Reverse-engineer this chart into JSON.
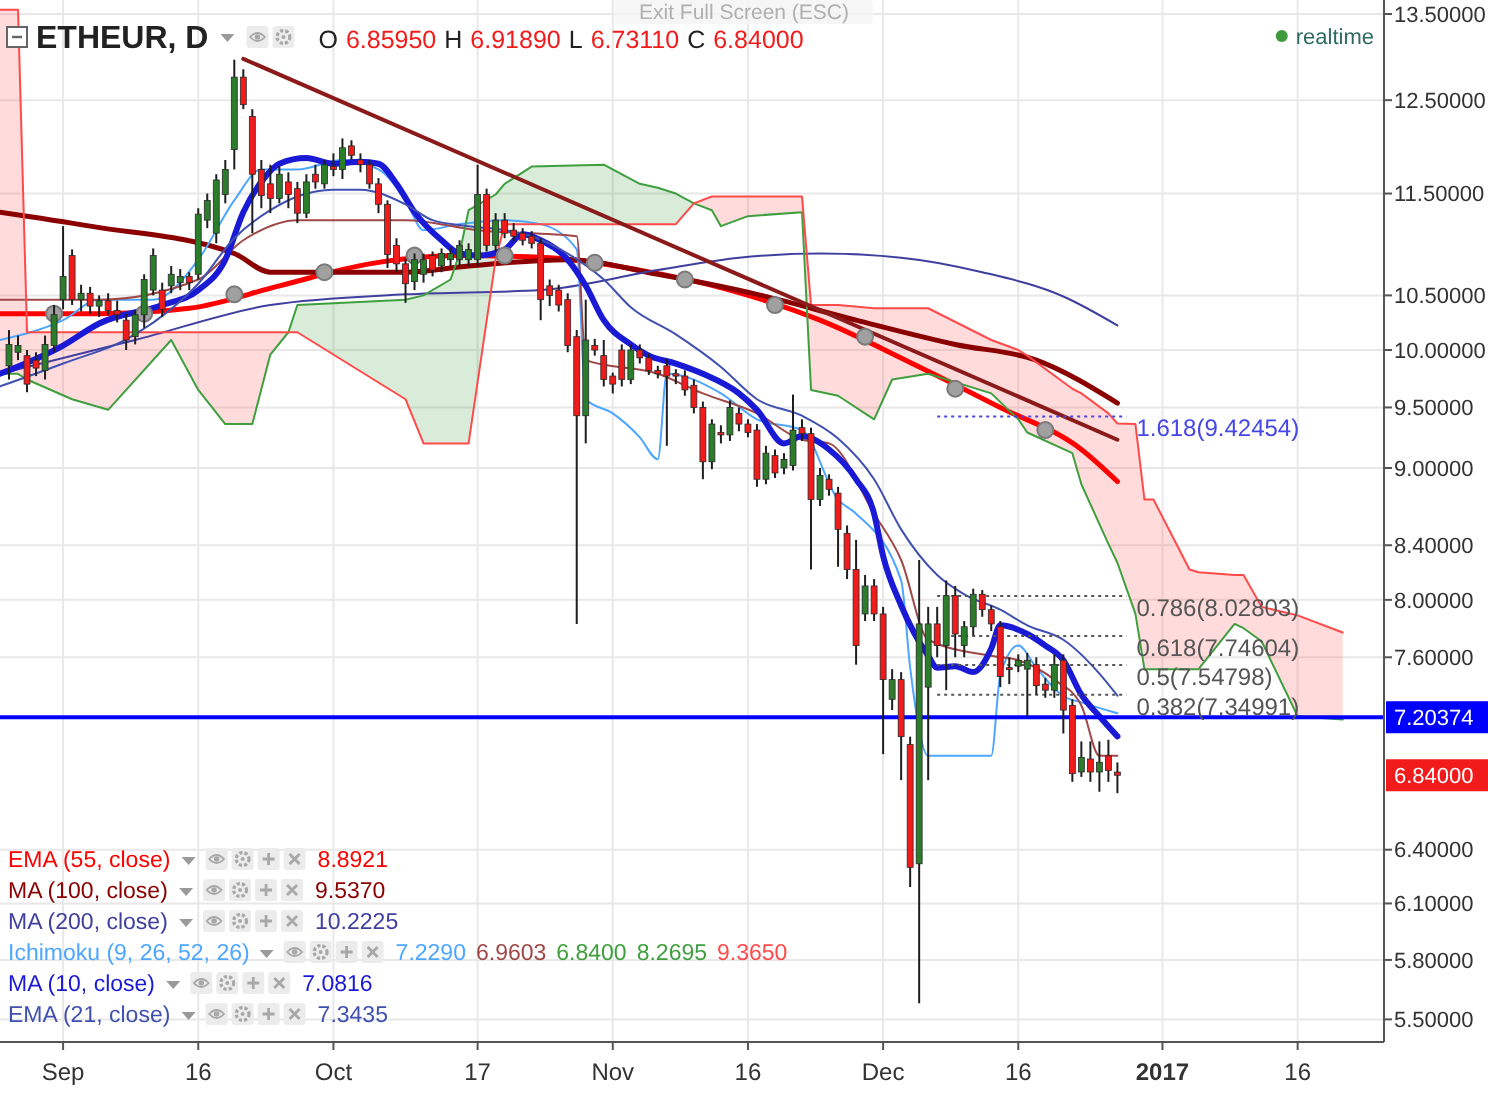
{
  "chart_data": {
    "type": "candlestick",
    "title": "ETHEUR, D",
    "subtitle": "O 6.85950 H 6.91890 L 6.73110 C 6.84000",
    "x": [
      "2016-08-26",
      "2016-08-27",
      "2016-08-28",
      "2016-08-29",
      "2016-08-30",
      "2016-08-31",
      "2016-09-01",
      "2016-09-02",
      "2016-09-03",
      "2016-09-04",
      "2016-09-05",
      "2016-09-06",
      "2016-09-07",
      "2016-09-08",
      "2016-09-09",
      "2016-09-10",
      "2016-09-11",
      "2016-09-12",
      "2016-09-13",
      "2016-09-14",
      "2016-09-15",
      "2016-09-16",
      "2016-09-17",
      "2016-09-18",
      "2016-09-19",
      "2016-09-20",
      "2016-09-21",
      "2016-09-22",
      "2016-09-23",
      "2016-09-24",
      "2016-09-25",
      "2016-09-26",
      "2016-09-27",
      "2016-09-28",
      "2016-09-29",
      "2016-09-30",
      "2016-10-01",
      "2016-10-02",
      "2016-10-03",
      "2016-10-04",
      "2016-10-05",
      "2016-10-06",
      "2016-10-07",
      "2016-10-08",
      "2016-10-09",
      "2016-10-10",
      "2016-10-11",
      "2016-10-12",
      "2016-10-13",
      "2016-10-14",
      "2016-10-15",
      "2016-10-16",
      "2016-10-17",
      "2016-10-18",
      "2016-10-19",
      "2016-10-20",
      "2016-10-21",
      "2016-10-22",
      "2016-10-23",
      "2016-10-24",
      "2016-10-25",
      "2016-10-26",
      "2016-10-27",
      "2016-10-28",
      "2016-10-29",
      "2016-10-30",
      "2016-10-31",
      "2016-11-01",
      "2016-11-02",
      "2016-11-03",
      "2016-11-04",
      "2016-11-05",
      "2016-11-06",
      "2016-11-07",
      "2016-11-08",
      "2016-11-09",
      "2016-11-10",
      "2016-11-11",
      "2016-11-12",
      "2016-11-13",
      "2016-11-14",
      "2016-11-15",
      "2016-11-16",
      "2016-11-17",
      "2016-11-18",
      "2016-11-19",
      "2016-11-20",
      "2016-11-21",
      "2016-11-22",
      "2016-11-23",
      "2016-11-24",
      "2016-11-25",
      "2016-11-26",
      "2016-11-27",
      "2016-11-28",
      "2016-11-29",
      "2016-11-30",
      "2016-12-01",
      "2016-12-02",
      "2016-12-03",
      "2016-12-04",
      "2016-12-05",
      "2016-12-06",
      "2016-12-07",
      "2016-12-08",
      "2016-12-09",
      "2016-12-10",
      "2016-12-11",
      "2016-12-12",
      "2016-12-13",
      "2016-12-14",
      "2016-12-15",
      "2016-12-16",
      "2016-12-17",
      "2016-12-18",
      "2016-12-19",
      "2016-12-20",
      "2016-12-21",
      "2016-12-22",
      "2016-12-23",
      "2016-12-24",
      "2016-12-25",
      "2016-12-26",
      "2016-12-27"
    ],
    "ohlc": [
      [
        9.86,
        10.18,
        9.74,
        10.05
      ],
      [
        9.98,
        10.13,
        9.91,
        10.04
      ],
      [
        9.95,
        10.0,
        9.63,
        9.7
      ],
      [
        9.91,
        9.98,
        9.77,
        9.84
      ],
      [
        9.82,
        10.13,
        9.74,
        10.05
      ],
      [
        10.04,
        10.41,
        9.98,
        10.32
      ],
      [
        10.46,
        11.17,
        10.37,
        10.68
      ],
      [
        10.88,
        10.94,
        10.41,
        10.46
      ],
      [
        10.46,
        10.6,
        10.35,
        10.52
      ],
      [
        10.52,
        10.58,
        10.33,
        10.4
      ],
      [
        10.4,
        10.5,
        10.3,
        10.45
      ],
      [
        10.45,
        10.52,
        10.32,
        10.36
      ],
      [
        10.36,
        10.45,
        10.25,
        10.32
      ],
      [
        10.27,
        10.33,
        10.0,
        10.09
      ],
      [
        10.12,
        10.36,
        10.05,
        10.32
      ],
      [
        10.32,
        10.7,
        10.2,
        10.65
      ],
      [
        10.55,
        10.95,
        10.5,
        10.88
      ],
      [
        10.55,
        10.62,
        10.3,
        10.37
      ],
      [
        10.59,
        10.78,
        10.52,
        10.7
      ],
      [
        10.62,
        10.75,
        10.55,
        10.68
      ],
      [
        10.68,
        10.72,
        10.55,
        10.62
      ],
      [
        10.7,
        11.35,
        10.65,
        11.29
      ],
      [
        11.23,
        11.5,
        11.15,
        11.43
      ],
      [
        11.1,
        11.7,
        11.0,
        11.64
      ],
      [
        11.49,
        11.85,
        11.4,
        11.75
      ],
      [
        11.96,
        12.96,
        11.75,
        12.76
      ],
      [
        12.76,
        12.85,
        12.4,
        12.45
      ],
      [
        12.32,
        12.4,
        11.1,
        11.7
      ],
      [
        11.75,
        11.85,
        11.35,
        11.48
      ],
      [
        11.6,
        11.8,
        11.3,
        11.45
      ],
      [
        11.45,
        11.78,
        11.4,
        11.7
      ],
      [
        11.62,
        11.72,
        11.35,
        11.49
      ],
      [
        11.55,
        11.62,
        11.2,
        11.3
      ],
      [
        11.3,
        11.7,
        11.25,
        11.62
      ],
      [
        11.7,
        11.8,
        11.55,
        11.62
      ],
      [
        11.6,
        11.85,
        11.55,
        11.8
      ],
      [
        11.78,
        11.92,
        11.68,
        11.75
      ],
      [
        11.75,
        12.08,
        11.65,
        11.98
      ],
      [
        12.0,
        12.06,
        11.85,
        11.9
      ],
      [
        11.85,
        11.92,
        11.72,
        11.8
      ],
      [
        11.8,
        11.85,
        11.55,
        11.6
      ],
      [
        11.6,
        11.66,
        11.3,
        11.39
      ],
      [
        11.39,
        11.43,
        10.76,
        10.89
      ],
      [
        10.98,
        11.05,
        10.72,
        10.8
      ],
      [
        10.8,
        10.85,
        10.43,
        10.61
      ],
      [
        10.63,
        10.9,
        10.55,
        10.84
      ],
      [
        10.7,
        10.9,
        10.62,
        10.84
      ],
      [
        10.88,
        10.92,
        10.68,
        10.74
      ],
      [
        10.78,
        10.95,
        10.72,
        10.9
      ],
      [
        10.84,
        10.96,
        10.78,
        10.9
      ],
      [
        10.84,
        11.03,
        10.78,
        10.98
      ],
      [
        10.84,
        11.0,
        10.78,
        10.94
      ],
      [
        10.84,
        11.8,
        10.78,
        11.49
      ],
      [
        11.49,
        11.55,
        10.92,
        10.98
      ],
      [
        10.98,
        11.3,
        10.92,
        11.23
      ],
      [
        11.23,
        11.3,
        11.05,
        11.1
      ],
      [
        11.13,
        11.2,
        11.02,
        11.07
      ],
      [
        11.1,
        11.15,
        10.98,
        11.03
      ],
      [
        11.07,
        11.12,
        10.95,
        11.0
      ],
      [
        11.0,
        11.05,
        10.27,
        10.46
      ],
      [
        10.59,
        10.65,
        10.4,
        10.5
      ],
      [
        10.55,
        10.6,
        10.35,
        10.41
      ],
      [
        10.46,
        10.52,
        9.98,
        10.04
      ],
      [
        10.12,
        10.18,
        7.83,
        9.43
      ],
      [
        9.43,
        10.46,
        9.2,
        10.09
      ],
      [
        10.04,
        10.1,
        9.95,
        10.0
      ],
      [
        9.95,
        10.09,
        9.68,
        9.74
      ],
      [
        9.77,
        9.8,
        9.62,
        9.7
      ],
      [
        10.0,
        10.05,
        9.68,
        9.74
      ],
      [
        9.74,
        10.05,
        9.7,
        10.0
      ],
      [
        10.0,
        10.05,
        9.88,
        9.93
      ],
      [
        9.93,
        9.97,
        9.78,
        9.82
      ],
      [
        9.82,
        9.86,
        9.75,
        9.79
      ],
      [
        9.86,
        9.92,
        9.18,
        9.77
      ],
      [
        9.79,
        9.83,
        9.7,
        9.77
      ],
      [
        9.77,
        9.82,
        9.6,
        9.65
      ],
      [
        9.69,
        9.74,
        9.45,
        9.5
      ],
      [
        9.5,
        9.55,
        8.91,
        9.05
      ],
      [
        9.05,
        9.4,
        8.99,
        9.36
      ],
      [
        9.29,
        9.35,
        9.2,
        9.27
      ],
      [
        9.27,
        9.56,
        9.22,
        9.5
      ],
      [
        9.45,
        9.5,
        9.3,
        9.36
      ],
      [
        9.36,
        9.4,
        9.25,
        9.29
      ],
      [
        9.31,
        9.36,
        8.85,
        8.91
      ],
      [
        8.91,
        9.18,
        8.87,
        9.12
      ],
      [
        9.1,
        9.15,
        8.92,
        8.96
      ],
      [
        9.0,
        9.12,
        8.95,
        9.07
      ],
      [
        9.02,
        9.61,
        8.98,
        9.31
      ],
      [
        9.33,
        9.4,
        9.22,
        9.28
      ],
      [
        9.28,
        9.33,
        8.22,
        8.75
      ],
      [
        8.75,
        9.0,
        8.7,
        8.94
      ],
      [
        8.91,
        8.95,
        8.78,
        8.83
      ],
      [
        8.8,
        8.85,
        8.24,
        8.52
      ],
      [
        8.49,
        8.55,
        8.15,
        8.22
      ],
      [
        8.22,
        8.44,
        7.55,
        7.68
      ],
      [
        7.9,
        8.18,
        7.85,
        8.1
      ],
      [
        8.1,
        8.15,
        7.85,
        7.9
      ],
      [
        7.9,
        7.95,
        6.97,
        7.45
      ],
      [
        7.32,
        7.52,
        7.25,
        7.45
      ],
      [
        7.45,
        7.5,
        6.81,
        7.08
      ],
      [
        7.03,
        7.08,
        6.19,
        6.3
      ],
      [
        6.32,
        8.29,
        5.58,
        7.83
      ],
      [
        7.4,
        7.95,
        6.81,
        7.83
      ],
      [
        7.83,
        7.95,
        7.6,
        7.68
      ],
      [
        7.68,
        8.14,
        7.38,
        8.03
      ],
      [
        8.03,
        8.1,
        7.6,
        7.76
      ],
      [
        7.68,
        7.85,
        7.6,
        7.81
      ],
      [
        7.81,
        8.08,
        7.75,
        8.04
      ],
      [
        8.04,
        8.07,
        7.88,
        7.93
      ],
      [
        7.93,
        7.96,
        7.78,
        7.83
      ],
      [
        7.81,
        7.85,
        7.4,
        7.47
      ],
      [
        7.53,
        7.6,
        7.42,
        7.52
      ],
      [
        7.54,
        7.62,
        7.5,
        7.58
      ],
      [
        7.52,
        7.63,
        7.21,
        7.58
      ],
      [
        7.55,
        7.6,
        7.35,
        7.41
      ],
      [
        7.42,
        7.46,
        7.33,
        7.38
      ],
      [
        7.38,
        7.62,
        7.33,
        7.55
      ],
      [
        7.58,
        7.62,
        7.1,
        7.25
      ],
      [
        7.28,
        7.32,
        6.8,
        6.85
      ],
      [
        6.86,
        7.05,
        6.83,
        6.95
      ],
      [
        6.94,
        7.05,
        6.8,
        6.86
      ],
      [
        6.86,
        7.05,
        6.74,
        6.92
      ],
      [
        6.96,
        7.06,
        6.8,
        6.87
      ],
      [
        6.8595,
        6.9189,
        6.7311,
        6.84
      ]
    ],
    "colors": [
      "#2b7d2b",
      "#2b7d2b",
      "#f21b1b",
      "#f21b1b",
      "#2b7d2b",
      "#2b7d2b",
      "#2b7d2b",
      "#f21b1b",
      "#2b7d2b",
      "#f21b1b",
      "#2b7d2b",
      "#f21b1b",
      "#f21b1b",
      "#f21b1b",
      "#2b7d2b",
      "#2b7d2b",
      "#2b7d2b",
      "#f21b1b",
      "#2b7d2b",
      "#2b7d2b",
      "#f21b1b",
      "#2b7d2b",
      "#2b7d2b",
      "#2b7d2b",
      "#2b7d2b",
      "#2b7d2b",
      "#f21b1b",
      "#f21b1b",
      "#f21b1b",
      "#f21b1b",
      "#2b7d2b",
      "#f21b1b",
      "#f21b1b",
      "#2b7d2b",
      "#f21b1b",
      "#2b7d2b",
      "#f21b1b",
      "#2b7d2b",
      "#f21b1b",
      "#f21b1b",
      "#f21b1b",
      "#f21b1b",
      "#f21b1b",
      "#f21b1b",
      "#f21b1b",
      "#2b7d2b",
      "#2b7d2b",
      "#f21b1b",
      "#2b7d2b",
      "#2b7d2b",
      "#2b7d2b",
      "#2b7d2b",
      "#2b7d2b",
      "#f21b1b",
      "#2b7d2b",
      "#f21b1b",
      "#f21b1b",
      "#f21b1b",
      "#f21b1b",
      "#f21b1b",
      "#f21b1b",
      "#f21b1b",
      "#f21b1b",
      "#f21b1b",
      "#2b7d2b",
      "#f21b1b",
      "#f21b1b",
      "#f21b1b",
      "#f21b1b",
      "#2b7d2b",
      "#f21b1b",
      "#f21b1b",
      "#f21b1b",
      "#f21b1b",
      "#f21b1b",
      "#f21b1b",
      "#f21b1b",
      "#f21b1b",
      "#2b7d2b",
      "#f21b1b",
      "#2b7d2b",
      "#f21b1b",
      "#f21b1b",
      "#f21b1b",
      "#2b7d2b",
      "#f21b1b",
      "#2b7d2b",
      "#2b7d2b",
      "#f21b1b",
      "#f21b1b",
      "#2b7d2b",
      "#f21b1b",
      "#f21b1b",
      "#f21b1b",
      "#f21b1b",
      "#2b7d2b",
      "#f21b1b",
      "#f21b1b",
      "#2b7d2b",
      "#f21b1b",
      "#f21b1b",
      "#2b7d2b",
      "#2b7d2b",
      "#f21b1b",
      "#2b7d2b",
      "#f21b1b",
      "#2b7d2b",
      "#2b7d2b",
      "#f21b1b",
      "#f21b1b",
      "#f21b1b",
      "#f21b1b",
      "#2b7d2b",
      "#2b7d2b",
      "#f21b1b",
      "#f21b1b",
      "#2b7d2b",
      "#f21b1b",
      "#f21b1b",
      "#2b7d2b",
      "#f21b1b",
      "#2b7d2b",
      "#f21b1b",
      "#f21b1b"
    ],
    "series": [
      {
        "type": "line",
        "name": "EMA (55, close)",
        "color": "#ff0000",
        "x": [
          "2016-08-25",
          "2016-09-05",
          "2016-09-15",
          "2016-09-25",
          "2016-10-05",
          "2016-10-15",
          "2016-10-25",
          "2016-11-04",
          "2016-11-14",
          "2016-11-24",
          "2016-12-04",
          "2016-12-14",
          "2016-12-23",
          "2016-12-27"
        ],
        "values": [
          10.33,
          10.33,
          10.38,
          10.59,
          10.8,
          10.88,
          10.86,
          10.74,
          10.55,
          10.27,
          9.89,
          9.5,
          9.15,
          8.8921
        ]
      },
      {
        "type": "line",
        "name": "MA (100, close)",
        "color": "#8b0000",
        "x": [
          "2016-08-25",
          "2016-09-04",
          "2016-09-20",
          "2016-09-24",
          "2016-09-30",
          "2016-10-09",
          "2016-10-16",
          "2016-10-27",
          "2016-11-06",
          "2016-11-17",
          "2016-11-28",
          "2016-12-09",
          "2016-12-18",
          "2016-12-27"
        ],
        "values": [
          11.31,
          11.17,
          10.9,
          10.72,
          10.72,
          10.72,
          10.78,
          10.84,
          10.7,
          10.51,
          10.27,
          10.05,
          9.91,
          9.537
        ]
      },
      {
        "type": "line",
        "name": "MA (200, close)",
        "color": "#3f3f9f",
        "x": [
          "2016-08-25",
          "2016-09-09",
          "2016-09-24",
          "2016-10-09",
          "2016-10-24",
          "2016-11-06",
          "2016-11-15",
          "2016-11-24",
          "2016-12-03",
          "2016-12-12",
          "2016-12-21",
          "2016-12-27"
        ],
        "values": [
          9.79,
          10.09,
          10.41,
          10.51,
          10.55,
          10.74,
          10.86,
          10.9,
          10.86,
          10.72,
          10.49,
          10.2225
        ]
      },
      {
        "type": "line",
        "name": "Ichimoku (9, 26, 52, 26)",
        "color": "#4da6ff",
        "x": [
          "2016-08-25",
          "2016-09-01",
          "2016-09-05",
          "2016-09-11",
          "2016-09-16",
          "2016-09-20",
          "2016-09-23",
          "2016-09-27",
          "2016-10-02",
          "2016-10-06",
          "2016-10-09",
          "2016-10-11",
          "2016-10-15",
          "2016-10-20",
          "2016-10-24",
          "2016-10-28",
          "2016-10-29",
          "2016-11-01",
          "2016-11-04",
          "2016-11-06",
          "2016-11-07",
          "2016-11-13",
          "2016-11-17",
          "2016-11-22",
          "2016-11-26",
          "2016-11-28",
          "2016-12-03",
          "2016-12-04",
          "2016-12-06",
          "2016-12-13",
          "2016-12-14",
          "2016-12-16",
          "2016-12-18",
          "2016-12-21",
          "2016-12-23",
          "2016-12-27"
        ],
        "values": [
          10.09,
          10.27,
          10.46,
          10.46,
          10.84,
          11.43,
          11.75,
          11.75,
          11.85,
          11.75,
          11.43,
          11.13,
          11.19,
          11.23,
          11.19,
          10.94,
          9.57,
          9.45,
          9.25,
          9.07,
          9.79,
          9.62,
          9.4,
          9.31,
          8.75,
          8.64,
          8.14,
          7.53,
          6.96,
          6.96,
          7.48,
          7.68,
          7.53,
          7.34,
          7.3,
          7.229
        ]
      },
      {
        "type": "line",
        "color": "#a04848",
        "x": [
          "2016-08-25",
          "2016-09-05",
          "2016-09-16",
          "2016-09-21",
          "2016-09-27",
          "2016-10-09",
          "2016-10-17",
          "2016-10-28",
          "2016-10-29",
          "2016-11-06",
          "2016-11-11",
          "2016-11-17",
          "2016-11-22",
          "2016-11-25",
          "2016-11-30",
          "2016-12-03",
          "2016-12-06",
          "2016-12-13",
          "2016-12-16",
          "2016-12-20",
          "2016-12-23",
          "2016-12-25",
          "2016-12-27"
        ],
        "values": [
          10.46,
          10.46,
          10.65,
          11.03,
          11.23,
          11.23,
          11.13,
          11.07,
          9.91,
          9.79,
          9.62,
          9.45,
          9.23,
          9.2,
          8.64,
          8.29,
          7.72,
          7.61,
          7.58,
          7.45,
          7.28,
          6.96,
          6.9603
        ]
      },
      {
        "type": "line",
        "color": "#3f9f3f",
        "x": [
          "2016-08-25",
          "2016-08-27",
          "2016-08-28",
          "2016-09-02",
          "2016-09-06",
          "2016-09-13",
          "2016-09-16",
          "2016-09-19",
          "2016-09-22",
          "2016-09-24",
          "2016-09-26",
          "2016-09-27",
          "2016-10-09",
          "2016-10-11",
          "2016-10-14",
          "2016-10-15",
          "2016-10-16",
          "2016-10-19",
          "2016-10-20",
          "2016-10-23",
          "2016-10-31",
          "2016-11-04",
          "2016-11-06",
          "2016-11-08",
          "2016-11-10",
          "2016-11-12",
          "2016-11-13",
          "2016-11-16",
          "2016-11-22",
          "2016-11-23",
          "2016-11-26",
          "2016-11-30",
          "2016-12-02",
          "2016-12-06",
          "2016-12-13",
          "2016-12-16",
          "2016-12-17",
          "2016-12-22",
          "2016-12-23",
          "2016-12-26",
          "2016-12-27",
          "2016-12-29",
          "2016-12-30",
          "2016-12-31",
          "2017-01-04",
          "2017-01-05",
          "2017-01-09",
          "2017-01-10",
          "2017-01-12",
          "2017-01-16",
          "2017-01-21"
        ],
        "values": [
          9.79,
          9.79,
          9.74,
          9.57,
          9.48,
          10.09,
          9.65,
          9.36,
          9.36,
          9.96,
          10.16,
          10.41,
          10.46,
          10.5,
          10.65,
          10.9,
          11.33,
          11.49,
          11.6,
          11.78,
          11.8,
          11.6,
          11.56,
          11.5,
          11.4,
          11.33,
          11.17,
          11.27,
          11.31,
          9.65,
          9.6,
          9.4,
          9.74,
          9.79,
          9.62,
          9.4,
          9.29,
          9.12,
          8.87,
          8.41,
          8.2695,
          7.9,
          7.52,
          7.52,
          7.52,
          7.52,
          7.83,
          7.8,
          7.71,
          7.21,
          7.19
        ],
        "lower": [
          null,
          null,
          null,
          null,
          null,
          null,
          null,
          null,
          null,
          null,
          10.16,
          10.16,
          9.57,
          9.2,
          9.2,
          9.2,
          9.2,
          10.84,
          11.19,
          11.19,
          11.19,
          11.19,
          11.19,
          11.19,
          11.4,
          null,
          null,
          null,
          null,
          null,
          null,
          null,
          null,
          null,
          null,
          null,
          null,
          null,
          null,
          null,
          null,
          null,
          null,
          null,
          null,
          null,
          null,
          null,
          null,
          null,
          null
        ],
        "upper": [
          null,
          null,
          null,
          null,
          null,
          null,
          null,
          null,
          null,
          null,
          10.16,
          10.41,
          10.46,
          10.5,
          10.65,
          10.9,
          11.33,
          11.49,
          11.6,
          11.78,
          11.8,
          11.6,
          11.56,
          11.5,
          11.4,
          null,
          null,
          null,
          null,
          null,
          null,
          null,
          null,
          null,
          null,
          null,
          null,
          null,
          null,
          null,
          null,
          null,
          null,
          null,
          null,
          null,
          null,
          null,
          null,
          null,
          null
        ]
      },
      {
        "type": "line",
        "color": "#ff4a4a",
        "x": [
          "2016-08-25",
          "2016-08-27",
          "2016-08-28",
          "2016-09-02",
          "2016-09-06",
          "2016-09-13",
          "2016-09-16",
          "2016-09-19",
          "2016-09-22",
          "2016-09-24",
          "2016-09-26",
          "2016-09-27",
          "2016-10-09",
          "2016-10-11",
          "2016-10-14",
          "2016-10-15",
          "2016-10-16",
          "2016-10-19",
          "2016-10-20",
          "2016-10-23",
          "2016-10-31",
          "2016-11-04",
          "2016-11-06",
          "2016-11-08",
          "2016-11-10",
          "2016-11-12",
          "2016-11-13",
          "2016-11-16",
          "2016-11-22",
          "2016-11-23",
          "2016-11-26",
          "2016-11-30",
          "2016-12-02",
          "2016-12-06",
          "2016-12-13",
          "2016-12-16",
          "2016-12-17",
          "2016-12-22",
          "2016-12-23",
          "2016-12-26",
          "2016-12-27",
          "2016-12-29",
          "2016-12-30",
          "2016-12-31",
          "2017-01-04",
          "2017-01-05",
          "2017-01-09",
          "2017-01-10",
          "2017-01-12",
          "2017-01-16",
          "2017-01-21"
        ],
        "values": [
          13.55,
          13.55,
          10.16,
          10.16,
          10.16,
          10.16,
          10.16,
          10.16,
          10.16,
          10.16,
          10.16,
          10.16,
          9.57,
          9.2,
          9.2,
          9.2,
          9.2,
          10.84,
          11.19,
          11.19,
          11.19,
          11.19,
          11.19,
          11.19,
          11.4,
          11.47,
          11.47,
          11.47,
          11.47,
          10.41,
          10.41,
          10.38,
          10.38,
          10.38,
          10.09,
          10.0,
          9.95,
          9.66,
          9.62,
          9.45,
          9.365,
          9.36,
          8.75,
          8.75,
          8.22,
          8.2,
          8.18,
          8.18,
          7.95,
          7.89,
          7.77
        ],
        "lower": [
          9.79,
          9.79,
          9.74,
          9.57,
          9.48,
          10.09,
          9.65,
          9.36,
          9.36,
          9.96,
          10.16,
          null,
          null,
          null,
          null,
          null,
          null,
          null,
          null,
          null,
          null,
          null,
          null,
          null,
          11.4,
          11.33,
          11.17,
          11.27,
          11.31,
          9.65,
          9.6,
          9.4,
          9.74,
          9.79,
          9.62,
          9.4,
          9.29,
          9.12,
          8.87,
          8.41,
          8.2695,
          7.9,
          7.52,
          7.52,
          7.52,
          7.52,
          7.83,
          7.8,
          7.71,
          7.21,
          7.19
        ],
        "upper": [
          13.55,
          13.55,
          10.16,
          10.16,
          10.16,
          10.16,
          10.16,
          10.16,
          10.16,
          10.16,
          10.16,
          null,
          null,
          null,
          null,
          null,
          null,
          null,
          null,
          null,
          null,
          null,
          null,
          null,
          11.4,
          11.47,
          11.47,
          11.47,
          11.47,
          10.41,
          10.41,
          10.38,
          10.38,
          10.38,
          10.09,
          10.0,
          9.95,
          9.66,
          9.62,
          9.45,
          9.365,
          9.36,
          8.75,
          8.75,
          8.22,
          8.2,
          8.18,
          8.18,
          7.95,
          7.89,
          7.77
        ]
      },
      {
        "type": "line",
        "name": "MA (10, close)",
        "color": "#1a1ad6",
        "x": [
          "2016-08-25",
          "2016-09-01",
          "2016-09-05",
          "2016-09-12",
          "2016-09-16",
          "2016-09-19",
          "2016-09-21",
          "2016-09-23",
          "2016-09-25",
          "2016-09-28",
          "2016-10-01",
          "2016-10-04",
          "2016-10-06",
          "2016-10-08",
          "2016-10-10",
          "2016-10-13",
          "2016-10-15",
          "2016-10-17",
          "2016-10-20",
          "2016-10-22",
          "2016-10-24",
          "2016-10-27",
          "2016-10-29",
          "2016-10-31",
          "2016-11-03",
          "2016-11-05",
          "2016-11-08",
          "2016-11-11",
          "2016-11-15",
          "2016-11-17",
          "2016-11-20",
          "2016-11-22",
          "2016-11-25",
          "2016-11-28",
          "2016-11-30",
          "2016-12-01",
          "2016-12-03",
          "2016-12-06",
          "2016-12-07",
          "2016-12-09",
          "2016-12-11",
          "2016-12-13",
          "2016-12-14",
          "2016-12-17",
          "2016-12-19",
          "2016-12-21",
          "2016-12-23",
          "2016-12-25",
          "2016-12-27"
        ],
        "values": [
          9.79,
          10.04,
          10.24,
          10.41,
          10.55,
          10.84,
          11.31,
          11.62,
          11.81,
          11.87,
          11.81,
          11.83,
          11.81,
          11.6,
          11.31,
          11.03,
          10.9,
          10.88,
          10.94,
          11.09,
          11.03,
          10.84,
          10.59,
          10.27,
          10.05,
          9.95,
          9.88,
          9.79,
          9.62,
          9.48,
          9.2,
          9.26,
          9.15,
          8.91,
          8.64,
          8.32,
          7.96,
          7.61,
          7.53,
          7.54,
          7.5,
          7.66,
          7.82,
          7.76,
          7.68,
          7.58,
          7.35,
          7.21,
          7.0816
        ]
      },
      {
        "type": "line",
        "name": "EMA (21, close)",
        "color": "#4050b0",
        "x": [
          "2016-08-25",
          "2016-09-01",
          "2016-09-09",
          "2016-09-16",
          "2016-09-20",
          "2016-09-24",
          "2016-09-27",
          "2016-10-01",
          "2016-10-04",
          "2016-10-09",
          "2016-10-12",
          "2016-10-16",
          "2016-10-20",
          "2016-10-23",
          "2016-10-27",
          "2016-10-31",
          "2016-11-03",
          "2016-11-08",
          "2016-11-13",
          "2016-11-17",
          "2016-11-22",
          "2016-11-26",
          "2016-11-30",
          "2016-12-03",
          "2016-12-07",
          "2016-12-10",
          "2016-12-14",
          "2016-12-17",
          "2016-12-21",
          "2016-12-25",
          "2016-12-27"
        ],
        "values": [
          9.68,
          9.88,
          10.14,
          10.61,
          11.05,
          11.33,
          11.47,
          11.54,
          11.54,
          11.39,
          11.23,
          11.17,
          11.13,
          11.07,
          10.9,
          10.65,
          10.39,
          10.14,
          9.85,
          9.57,
          9.43,
          9.24,
          8.91,
          8.52,
          8.18,
          8.04,
          7.93,
          7.82,
          7.72,
          7.49,
          7.3435
        ]
      },
      {
        "type": "line",
        "color": "#8b1a1a",
        "x": [
          "2016-09-21",
          "2016-12-27"
        ],
        "values": [
          12.97,
          9.23
        ]
      },
      {
        "type": "scatter",
        "color": "#a0a0a0",
        "marker": "circle",
        "x": [
          "2016-08-31",
          "2016-09-10",
          "2016-09-20",
          "2016-09-30",
          "2016-10-10",
          "2016-10-20",
          "2016-10-30",
          "2016-11-09",
          "2016-11-19",
          "2016-11-29",
          "2016-12-09",
          "2016-12-19"
        ],
        "values": [
          10.33,
          10.33,
          10.51,
          10.72,
          10.88,
          10.88,
          10.81,
          10.65,
          10.41,
          10.12,
          9.66,
          9.31
        ]
      }
    ],
    "xlim": [
      "2016-08-25",
      "2017-01-25T14:00"
    ],
    "xticks": [
      {
        "value": "2016-09-01",
        "label": "Sep"
      },
      {
        "value": "2016-09-16",
        "label": "16"
      },
      {
        "value": "2016-10-01",
        "label": "Oct"
      },
      {
        "value": "2016-10-17",
        "label": "17"
      },
      {
        "value": "2016-11-01",
        "label": "Nov"
      },
      {
        "value": "2016-11-16",
        "label": "16"
      },
      {
        "value": "2016-12-01",
        "label": "Dec"
      },
      {
        "value": "2016-12-16",
        "label": "16"
      },
      {
        "value": "2017-01-01",
        "label": "2017"
      },
      {
        "value": "2017-01-16",
        "label": "16"
      }
    ],
    "ylim": [
      5.39,
      13.67
    ],
    "yticks": [
      {
        "value": 13.5,
        "label": "13.50000"
      },
      {
        "value": 12.5,
        "label": "12.50000"
      },
      {
        "value": 11.5,
        "label": "11.50000"
      },
      {
        "value": 10.5,
        "label": "10.50000"
      },
      {
        "value": 10.0,
        "label": "10.00000"
      },
      {
        "value": 9.5,
        "label": "9.50000"
      },
      {
        "value": 9.0,
        "label": "9.00000"
      },
      {
        "value": 8.4,
        "label": "8.40000"
      },
      {
        "value": 8.0,
        "label": "8.00000"
      },
      {
        "value": 7.6,
        "label": "7.60000"
      },
      {
        "value": 6.4,
        "label": "6.40000"
      },
      {
        "value": 6.1,
        "label": "6.10000"
      },
      {
        "value": 5.8,
        "label": "5.80000"
      },
      {
        "value": 5.5,
        "label": "5.50000"
      }
    ],
    "log": true,
    "grid": true,
    "legend": "bottom left",
    "ref_lines": [
      {
        "axis": "y",
        "value": 9.42454,
        "label": "1.618(9.42454)",
        "color": "#4646e6",
        "line_style": "dotted"
      },
      {
        "axis": "y",
        "value": 8.02803,
        "label": "0.786(8.02803)",
        "color": "#555555",
        "line_style": "dotted"
      },
      {
        "axis": "y",
        "value": 7.74604,
        "label": "0.618(7.74604)",
        "color": "#555555",
        "line_style": "dotted"
      },
      {
        "axis": "y",
        "value": 7.54798,
        "label": "0.5(7.54798)",
        "color": "#555555",
        "line_style": "dotted"
      },
      {
        "axis": "y",
        "value": 7.34991,
        "label": "0.382(7.34991)",
        "color": "#555555",
        "line_style": "dotted"
      },
      {
        "axis": "y",
        "value": 7.20374,
        "label": "7.20374",
        "color": "#0000ff",
        "line_style": "solid"
      }
    ],
    "annotations": [
      "8.8921",
      "9.5370",
      "10.2225",
      "7.2290 6.9603 6.8400 8.2695 9.3650",
      "7.0816",
      "7.3435",
      "Exit Full Screen (ESC)",
      "realtime",
      "6.84000"
    ]
  }
}
